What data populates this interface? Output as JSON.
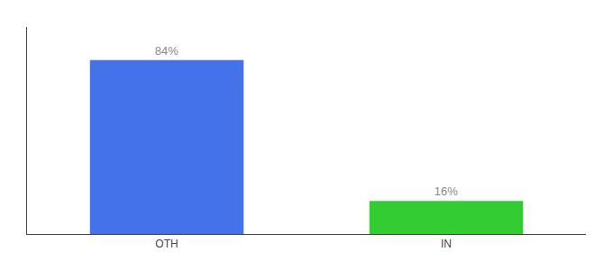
{
  "chart_data": {
    "type": "bar",
    "categories": [
      "OTH",
      "IN"
    ],
    "values": [
      84,
      16
    ],
    "value_labels": [
      "84%",
      "16%"
    ],
    "data_labels": true,
    "colors": [
      "#4472e8",
      "#33cc33"
    ],
    "ylim": [
      0,
      100
    ],
    "tick_labels": "x",
    "grid": false
  }
}
